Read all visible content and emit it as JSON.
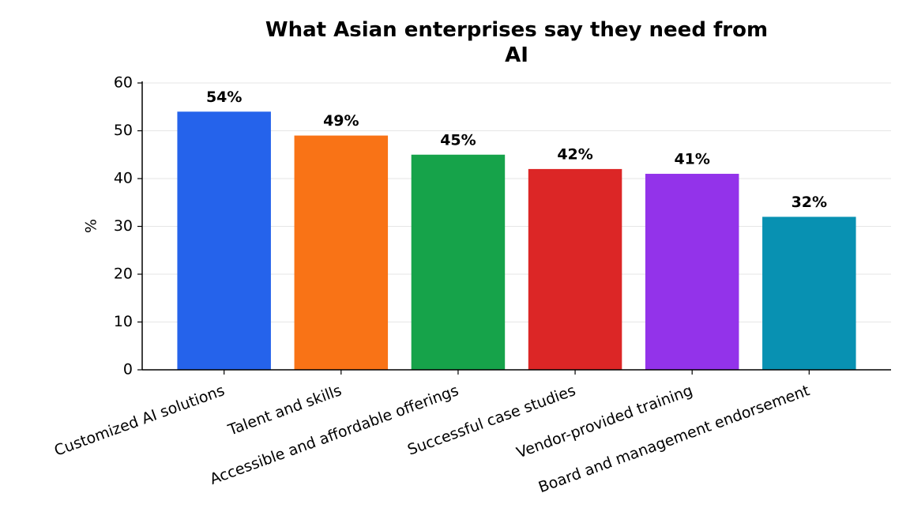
{
  "chart_data": {
    "type": "bar",
    "title": "What Asian enterprises say they need from\nAI",
    "ylabel": "%",
    "categories": [
      "Customized AI solutions",
      "Talent and skills",
      "Accessible and affordable offerings",
      "Successful case studies",
      "Vendor-provided training",
      "Board and management endorsement"
    ],
    "values": [
      54,
      49,
      45,
      42,
      41,
      32
    ],
    "value_labels": [
      "54%",
      "49%",
      "45%",
      "42%",
      "41%",
      "32%"
    ],
    "colors": [
      "#2563eb",
      "#f97316",
      "#16a34a",
      "#dc2626",
      "#9333ea",
      "#0891b2"
    ],
    "ylim": [
      0,
      60
    ],
    "yticks": [
      0,
      10,
      20,
      30,
      40,
      50,
      60
    ],
    "grid": true
  }
}
